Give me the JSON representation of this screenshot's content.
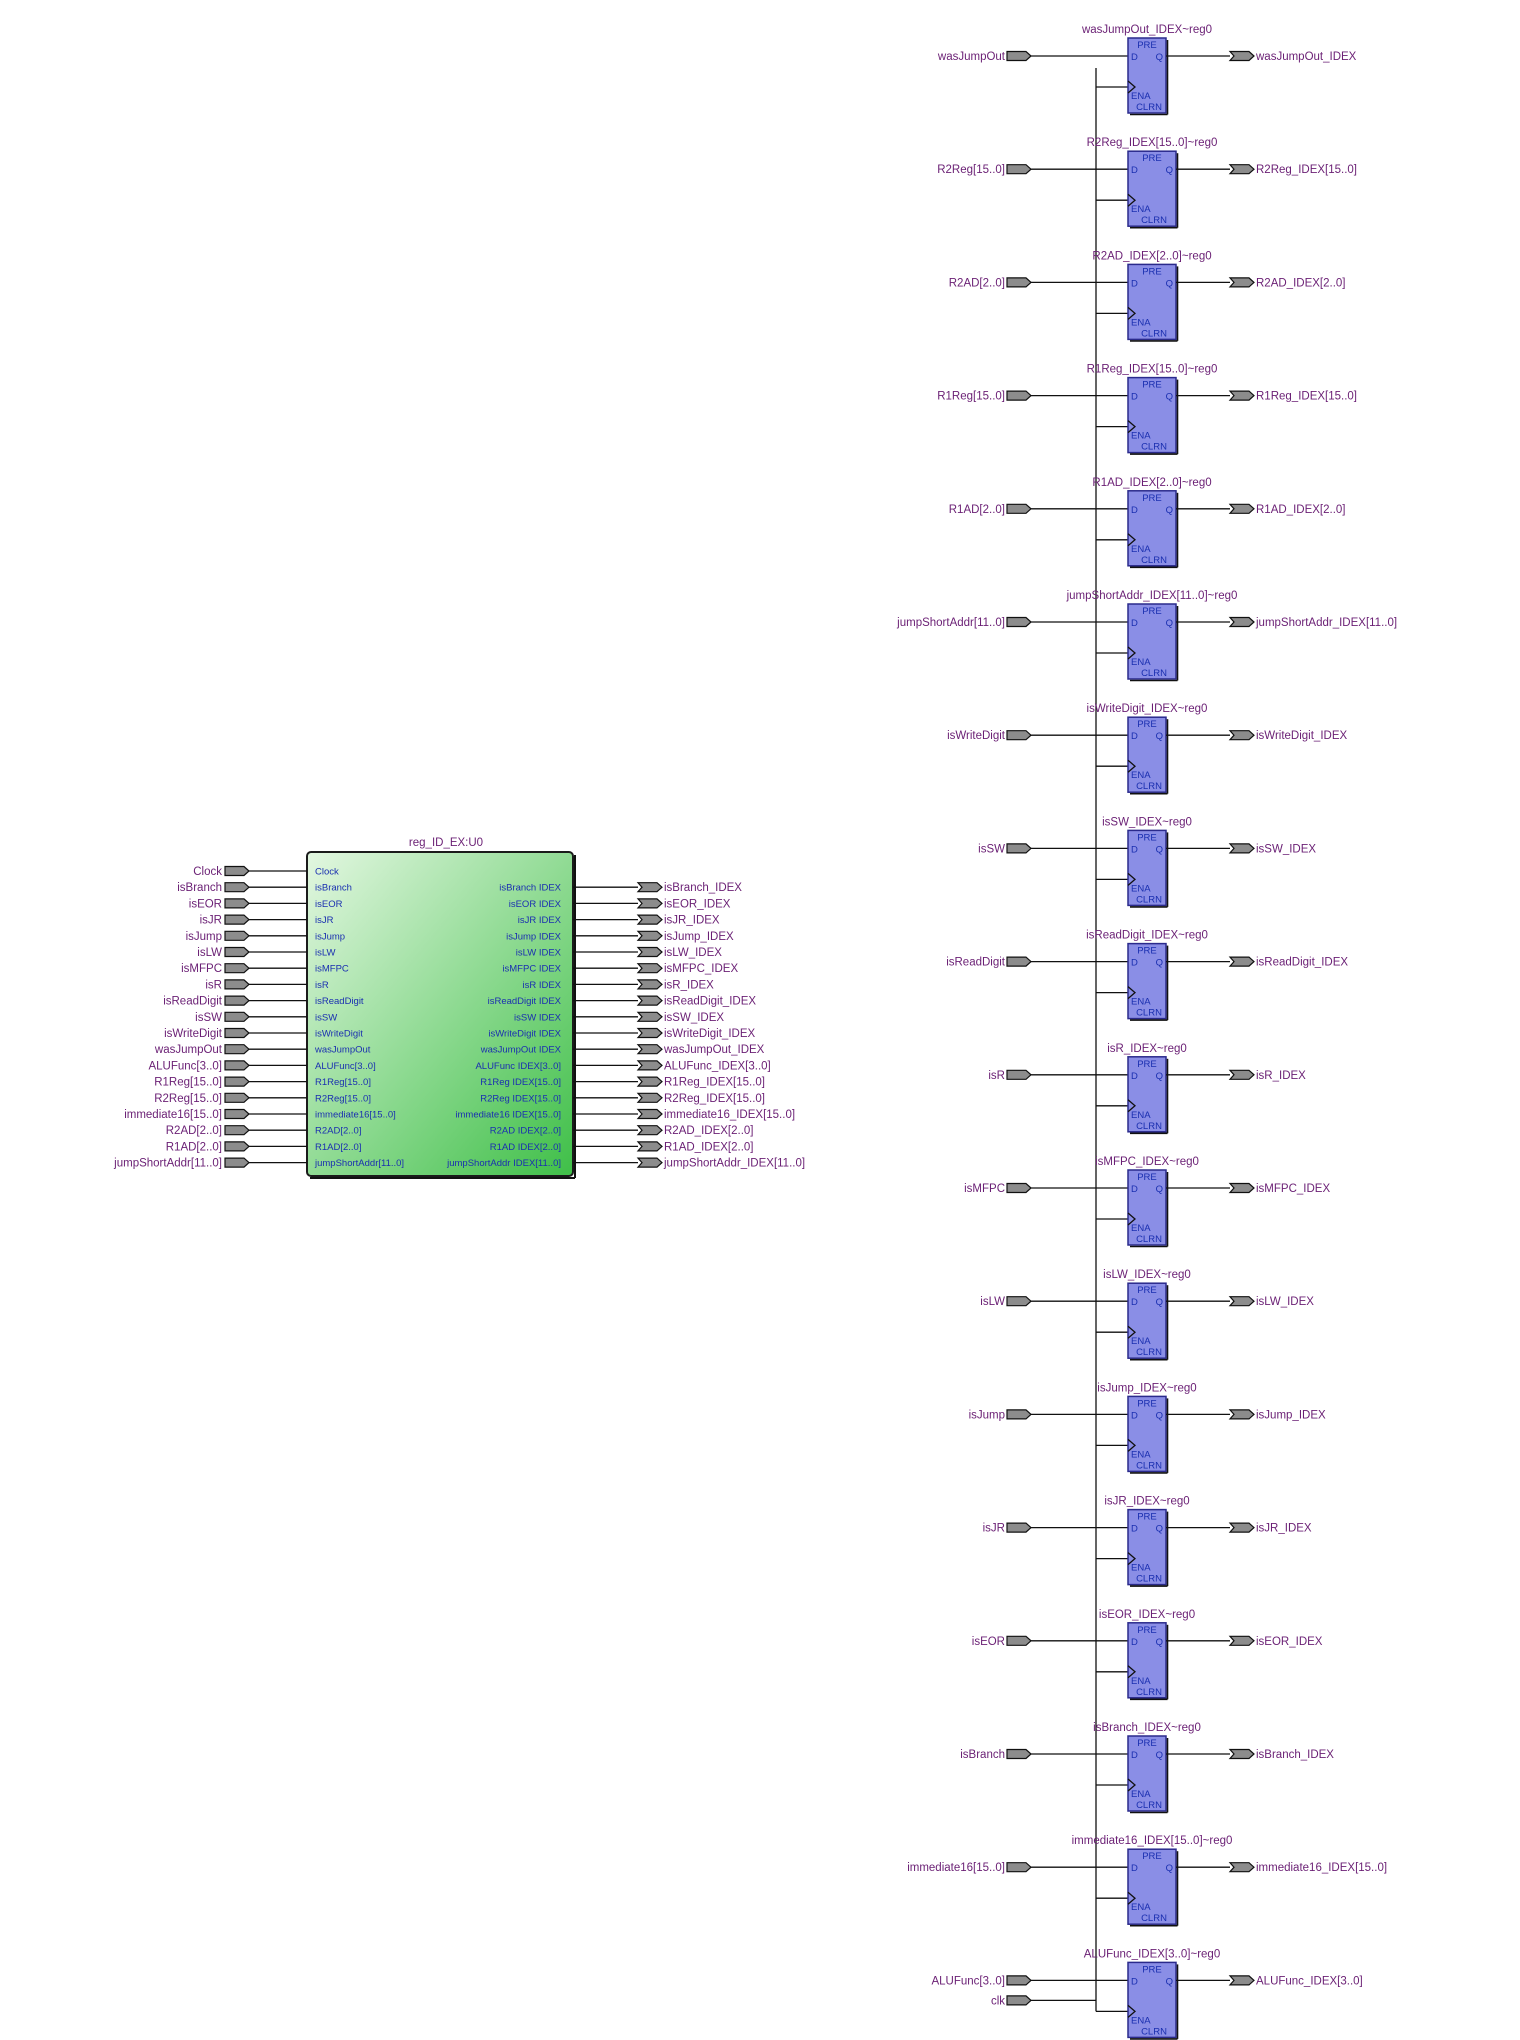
{
  "module": {
    "instance_name": "reg_ID_EX:U0",
    "input_pins": [
      "Clock",
      "isBranch",
      "isEOR",
      "isJR",
      "isJump",
      "isLW",
      "isMFPC",
      "isR",
      "isReadDigit",
      "isSW",
      "isWriteDigit",
      "wasJumpOut",
      "ALUFunc[3..0]",
      "R1Reg[15..0]",
      "R2Reg[15..0]",
      "immediate16[15..0]",
      "R2AD[2..0]",
      "R1AD[2..0]",
      "jumpShortAddr[11..0]"
    ],
    "output_pins": [
      {
        "name": "isBranch",
        "suffix": "IDEX"
      },
      {
        "name": "isEOR",
        "suffix": "IDEX"
      },
      {
        "name": "isJR",
        "suffix": "IDEX"
      },
      {
        "name": "isJump",
        "suffix": "IDEX"
      },
      {
        "name": "isLW",
        "suffix": "IDEX"
      },
      {
        "name": "isMFPC",
        "suffix": "IDEX"
      },
      {
        "name": "isR",
        "suffix": "IDEX"
      },
      {
        "name": "isReadDigit",
        "suffix": "IDEX"
      },
      {
        "name": "isSW",
        "suffix": "IDEX"
      },
      {
        "name": "isWriteDigit",
        "suffix": "IDEX"
      },
      {
        "name": "wasJumpOut",
        "suffix": "IDEX"
      },
      {
        "name": "ALUFunc",
        "suffix": "IDEX[3..0]"
      },
      {
        "name": "R1Reg",
        "suffix": "IDEX[15..0]"
      },
      {
        "name": "R2Reg",
        "suffix": "IDEX[15..0]"
      },
      {
        "name": "immediate16",
        "suffix": "IDEX[15..0]"
      },
      {
        "name": "R2AD",
        "suffix": "IDEX[2..0]"
      },
      {
        "name": "R1AD",
        "suffix": "IDEX[2..0]"
      },
      {
        "name": "jumpShortAddr",
        "suffix": "IDEX[11..0]"
      }
    ],
    "input_ports": [
      "Clock",
      "isBranch",
      "isEOR",
      "isJR",
      "isJump",
      "isLW",
      "isMFPC",
      "isR",
      "isReadDigit",
      "isSW",
      "isWriteDigit",
      "wasJumpOut",
      "ALUFunc[3..0]",
      "R1Reg[15..0]",
      "R2Reg[15..0]",
      "immediate16[15..0]",
      "R2AD[2..0]",
      "R1AD[2..0]",
      "jumpShortAddr[11..0]"
    ],
    "output_ports": [
      "isBranch_IDEX",
      "isEOR_IDEX",
      "isJR_IDEX",
      "isJump_IDEX",
      "isLW_IDEX",
      "isMFPC_IDEX",
      "isR_IDEX",
      "isReadDigit_IDEX",
      "isSW_IDEX",
      "isWriteDigit_IDEX",
      "wasJumpOut_IDEX",
      "ALUFunc_IDEX[3..0]",
      "R1Reg_IDEX[15..0]",
      "R2Reg_IDEX[15..0]",
      "immediate16_IDEX[15..0]",
      "R2AD_IDEX[2..0]",
      "R1AD_IDEX[2..0]",
      "jumpShortAddr_IDEX[11..0]"
    ],
    "colors": {
      "fill_light": "#dff5dd",
      "fill_dark": "#3fc24a",
      "border": "#1b1b1b"
    }
  },
  "flipflops": {
    "pin_labels": {
      "d": "D",
      "pre": "PRE",
      "q": "Q",
      "ena": "ENA",
      "clrn": "CLRN"
    },
    "clock_port": "clk",
    "colors": {
      "fill": "#8a8ee6",
      "border": "#2a2a8c",
      "port": "#8c8c8c"
    },
    "registers": [
      {
        "title": "wasJumpOut_IDEX~reg0",
        "input": "wasJumpOut",
        "output": "wasJumpOut_IDEX",
        "bus": false
      },
      {
        "title": "R2Reg_IDEX[15..0]~reg0",
        "input": "R2Reg[15..0]",
        "output": "R2Reg_IDEX[15..0]",
        "bus": true
      },
      {
        "title": "R2AD_IDEX[2..0]~reg0",
        "input": "R2AD[2..0]",
        "output": "R2AD_IDEX[2..0]",
        "bus": true
      },
      {
        "title": "R1Reg_IDEX[15..0]~reg0",
        "input": "R1Reg[15..0]",
        "output": "R1Reg_IDEX[15..0]",
        "bus": true
      },
      {
        "title": "R1AD_IDEX[2..0]~reg0",
        "input": "R1AD[2..0]",
        "output": "R1AD_IDEX[2..0]",
        "bus": true
      },
      {
        "title": "jumpShortAddr_IDEX[11..0]~reg0",
        "input": "jumpShortAddr[11..0]",
        "output": "jumpShortAddr_IDEX[11..0]",
        "bus": true
      },
      {
        "title": "isWriteDigit_IDEX~reg0",
        "input": "isWriteDigit",
        "output": "isWriteDigit_IDEX",
        "bus": false
      },
      {
        "title": "isSW_IDEX~reg0",
        "input": "isSW",
        "output": "isSW_IDEX",
        "bus": false
      },
      {
        "title": "isReadDigit_IDEX~reg0",
        "input": "isReadDigit",
        "output": "isReadDigit_IDEX",
        "bus": false
      },
      {
        "title": "isR_IDEX~reg0",
        "input": "isR",
        "output": "isR_IDEX",
        "bus": false
      },
      {
        "title": "isMFPC_IDEX~reg0",
        "input": "isMFPC",
        "output": "isMFPC_IDEX",
        "bus": false
      },
      {
        "title": "isLW_IDEX~reg0",
        "input": "isLW",
        "output": "isLW_IDEX",
        "bus": false
      },
      {
        "title": "isJump_IDEX~reg0",
        "input": "isJump",
        "output": "isJump_IDEX",
        "bus": false
      },
      {
        "title": "isJR_IDEX~reg0",
        "input": "isJR",
        "output": "isJR_IDEX",
        "bus": false
      },
      {
        "title": "isEOR_IDEX~reg0",
        "input": "isEOR",
        "output": "isEOR_IDEX",
        "bus": false
      },
      {
        "title": "isBranch_IDEX~reg0",
        "input": "isBranch",
        "output": "isBranch_IDEX",
        "bus": false
      },
      {
        "title": "immediate16_IDEX[15..0]~reg0",
        "input": "immediate16[15..0]",
        "output": "immediate16_IDEX[15..0]",
        "bus": true
      },
      {
        "title": "ALUFunc_IDEX[3..0]~reg0",
        "input": "ALUFunc[3..0]",
        "output": "ALUFunc_IDEX[3..0]",
        "bus": true
      }
    ]
  }
}
